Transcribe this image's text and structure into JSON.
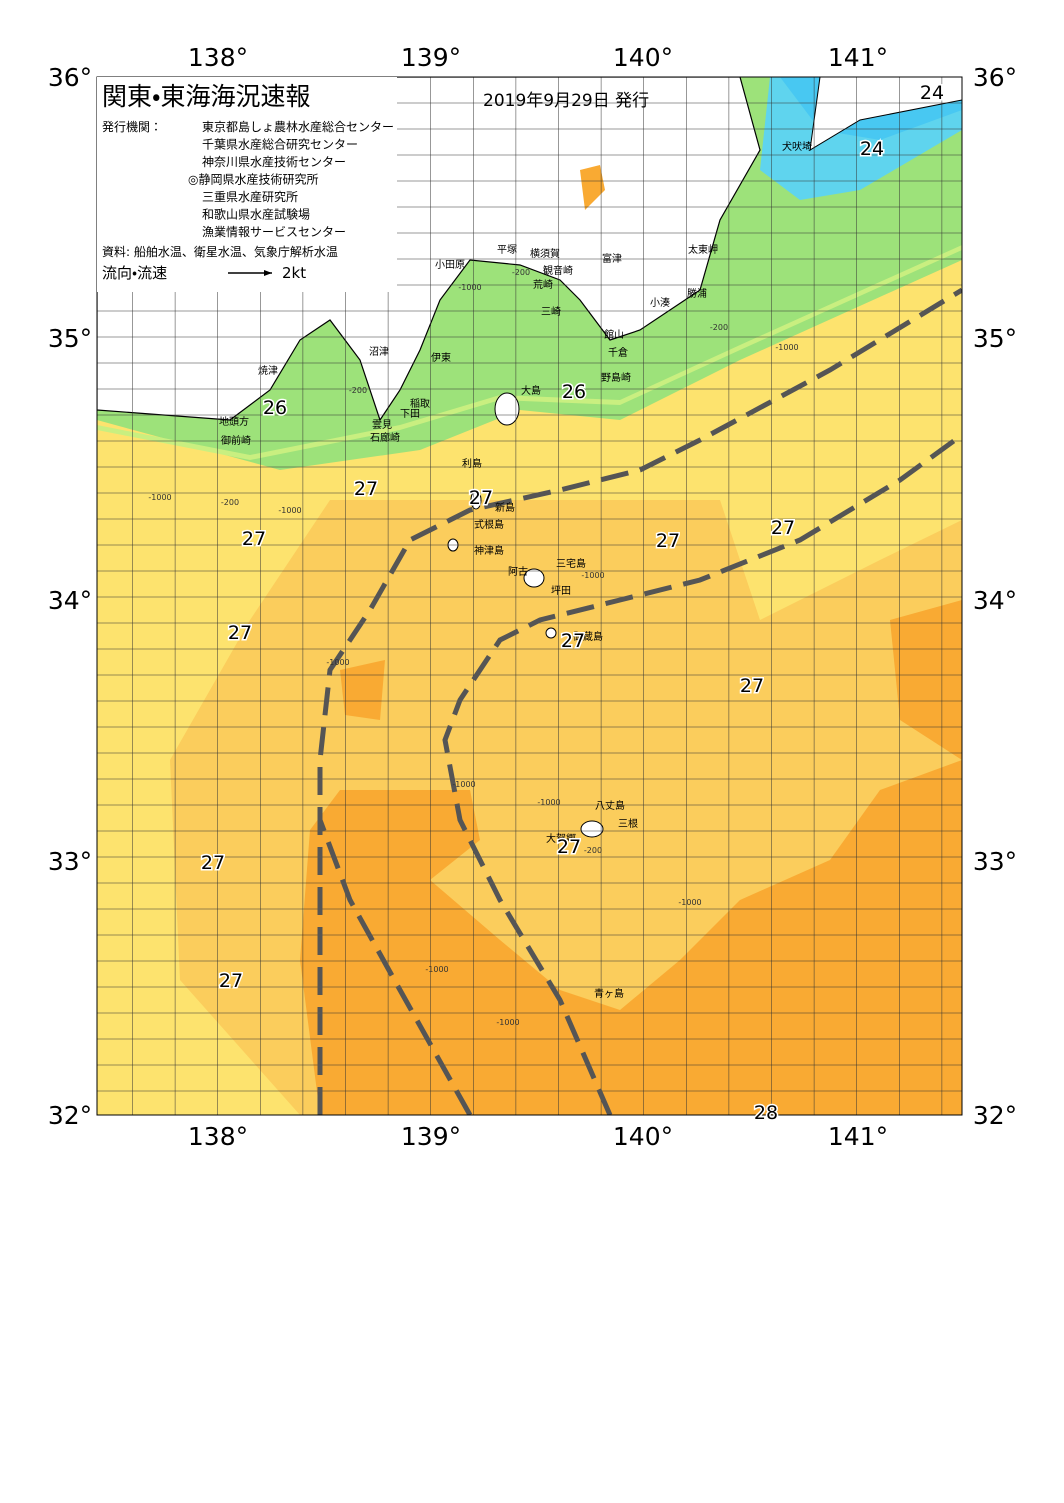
{
  "header": {
    "title": "関東・東海海況速報",
    "date": "2019年9月29日 発行"
  },
  "publisher": {
    "label": "発行機関：",
    "agencies": [
      "東京都島しょ農林水産総合センター",
      "千葉県水産総合研究センター",
      "神奈川県水産技術センター",
      "◎静岡県水産技術研究所",
      "三重県水産研究所",
      "和歌山県水産試験場",
      "漁業情報サービスセンター"
    ]
  },
  "source": "資料: 船舶水温、衛星水温、気象庁解析水温",
  "legend": {
    "label": "流向・流速",
    "speed": "2kt"
  },
  "map": {
    "lon_labels": [
      "138°",
      "139°",
      "140°",
      "141°"
    ],
    "lat_labels": [
      "36°",
      "35°",
      "34°",
      "33°",
      "32°"
    ],
    "places": [
      "犬吠埼",
      "太東岬",
      "勝浦",
      "小湊",
      "富津",
      "横須賀",
      "観音崎",
      "平塚",
      "小田原",
      "荒崎",
      "三崎",
      "館山",
      "千倉",
      "野島崎",
      "沼津",
      "伊東",
      "稲取",
      "下田",
      "雲見",
      "石廊崎",
      "焼津",
      "地頭方",
      "御前崎",
      "大島",
      "利島",
      "新島",
      "式根島",
      "神津島",
      "三宅島",
      "阿古",
      "坪田",
      "御蔵島",
      "八丈島",
      "三根",
      "大賀郷",
      "青ヶ島"
    ],
    "temperatures": [
      "24",
      "24",
      "26",
      "26",
      "27",
      "27",
      "27",
      "27",
      "27",
      "27",
      "27",
      "27",
      "27",
      "27",
      "27",
      "28"
    ],
    "depth_labels": [
      "-200",
      "-1000",
      "-200",
      "-200",
      "-1000",
      "-1000",
      "-200",
      "-1000",
      "-1000",
      "-1000",
      "-1000",
      "-200",
      "-1000",
      "-1000",
      "-1000",
      "-1000"
    ]
  }
}
